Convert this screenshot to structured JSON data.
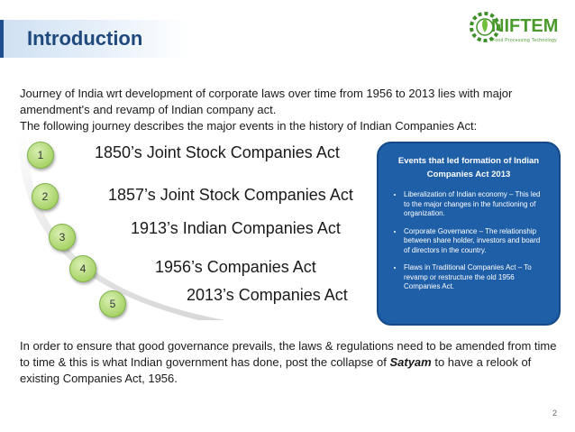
{
  "slide": {
    "title": "Introduction",
    "page_number": "2"
  },
  "logo": {
    "name": "NIFTEM",
    "tagline": "Food Processing Technology"
  },
  "intro": {
    "line1": "Journey of India wrt development of corporate laws over time from 1956 to 2013 lies with major amendment's and revamp of Indian company act.",
    "line2": "The following journey describes the major events in the history of Indian Companies Act:"
  },
  "timeline": [
    {
      "num": "1",
      "label": "1850’s Joint Stock Companies Act"
    },
    {
      "num": "2",
      "label": "1857’s Joint Stock Companies Act"
    },
    {
      "num": "3",
      "label": "1913’s Indian Companies Act"
    },
    {
      "num": "4",
      "label": "1956’s Companies Act"
    },
    {
      "num": "5",
      "label": "2013’s Companies Act"
    }
  ],
  "callout": {
    "heading": "Events that led formation of Indian Companies Act 2013",
    "bullets": [
      "Liberalization of Indian economy – This led to the major changes in the functioning of organization.",
      "Corporate Governance – The relationship between share holder, investors and board of directors in the country.",
      "Flaws in Traditional Companies Act – To revamp or restructure the old 1956 Companies Act."
    ]
  },
  "closing": {
    "before": "In order to ensure that good governance prevails, the laws & regulations need to be amended from time to time & this is what Indian government has done, post the collapse of ",
    "emphasis": "Satyam",
    "after": " to have a relook of existing Companies Act, 1956."
  },
  "colors": {
    "title": "#1f497d",
    "circle": "#a9d46a",
    "callout_bg": "#1f5fa8",
    "logo_green": "#4a9a2c"
  }
}
